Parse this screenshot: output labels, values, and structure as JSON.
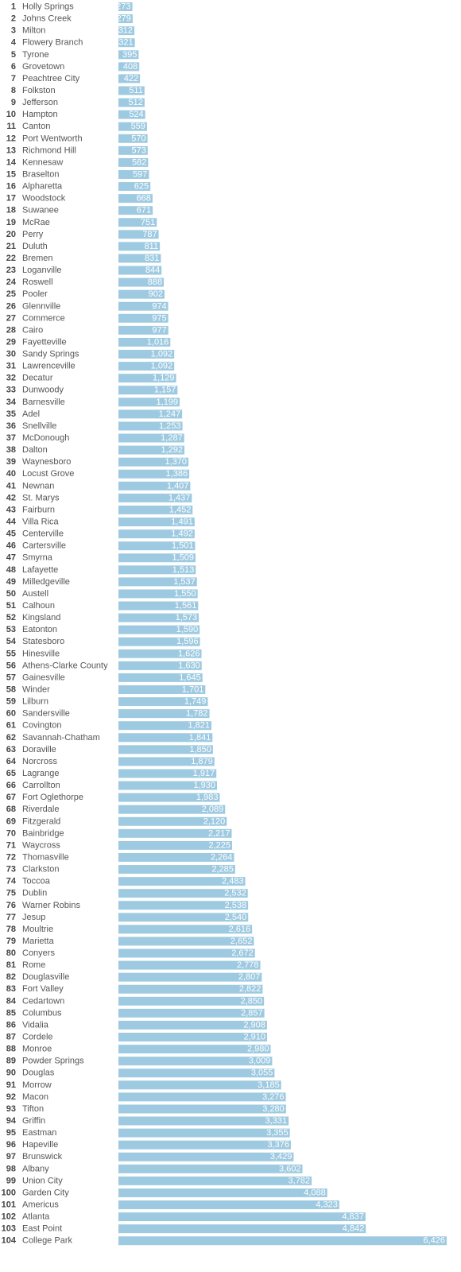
{
  "chart_data": {
    "type": "bar",
    "orientation": "horizontal",
    "bar_color": "#9ecae1",
    "value_label_color": "#ffffff",
    "ranks": [
      1,
      2,
      3,
      4,
      5,
      6,
      7,
      8,
      9,
      10,
      11,
      12,
      13,
      14,
      15,
      16,
      17,
      18,
      19,
      20,
      21,
      22,
      23,
      24,
      25,
      26,
      27,
      28,
      29,
      30,
      31,
      32,
      33,
      34,
      35,
      36,
      37,
      38,
      39,
      40,
      41,
      42,
      43,
      44,
      45,
      46,
      47,
      48,
      49,
      50,
      51,
      52,
      53,
      54,
      55,
      56,
      57,
      58,
      59,
      60,
      61,
      62,
      63,
      64,
      65,
      66,
      67,
      68,
      69,
      70,
      71,
      72,
      73,
      74,
      75,
      76,
      77,
      78,
      79,
      80,
      81,
      82,
      83,
      84,
      85,
      86,
      87,
      88,
      89,
      90,
      91,
      92,
      93,
      94,
      95,
      96,
      97,
      98,
      99,
      100,
      101,
      102,
      103,
      104
    ],
    "categories": [
      "Holly Springs",
      "Johns Creek",
      "Milton",
      "Flowery Branch",
      "Tyrone",
      "Grovetown",
      "Peachtree City",
      "Folkston",
      "Jefferson",
      "Hampton",
      "Canton",
      "Port Wentworth",
      "Richmond Hill",
      "Kennesaw",
      "Braselton",
      "Alpharetta",
      "Woodstock",
      "Suwanee",
      "McRae",
      "Perry",
      "Duluth",
      "Bremen",
      "Loganville",
      "Roswell",
      "Pooler",
      "Glennville",
      "Commerce",
      "Cairo",
      "Fayetteville",
      "Sandy Springs",
      "Lawrenceville",
      "Decatur",
      "Dunwoody",
      "Barnesville",
      "Adel",
      "Snellville",
      "McDonough",
      "Dalton",
      "Waynesboro",
      "Locust Grove",
      "Newnan",
      "St. Marys",
      "Fairburn",
      "Villa Rica",
      "Centerville",
      "Cartersville",
      "Smyrna",
      "Lafayette",
      "Milledgeville",
      "Austell",
      "Calhoun",
      "Kingsland",
      "Eatonton",
      "Statesboro",
      "Hinesville",
      "Athens-Clarke County",
      "Gainesville",
      "Winder",
      "Lilburn",
      "Sandersville",
      "Covington",
      "Savannah-Chatham",
      "Doraville",
      "Norcross",
      "Lagrange",
      "Carrollton",
      "Fort Oglethorpe",
      "Riverdale",
      "Fitzgerald",
      "Bainbridge",
      "Waycross",
      "Thomasville",
      "Clarkston",
      "Toccoa",
      "Dublin",
      "Warner Robins",
      "Jesup",
      "Moultrie",
      "Marietta",
      "Conyers",
      "Rome",
      "Douglasville",
      "Fort Valley",
      "Cedartown",
      "Columbus",
      "Vidalia",
      "Cordele",
      "Monroe",
      "Powder Springs",
      "Douglas",
      "Morrow",
      "Macon",
      "Tifton",
      "Griffin",
      "Eastman",
      "Hapeville",
      "Brunswick",
      "Albany",
      "Union City",
      "Garden City",
      "Americus",
      "Atlanta",
      "East Point",
      "College Park"
    ],
    "values": [
      273,
      279,
      312,
      321,
      395,
      408,
      422,
      511,
      512,
      524,
      559,
      570,
      573,
      582,
      597,
      625,
      668,
      671,
      751,
      787,
      811,
      831,
      844,
      888,
      902,
      974,
      975,
      977,
      1016,
      1092,
      1092,
      1129,
      1157,
      1199,
      1247,
      1253,
      1287,
      1292,
      1370,
      1386,
      1407,
      1437,
      1452,
      1491,
      1492,
      1501,
      1509,
      1513,
      1537,
      1550,
      1561,
      1573,
      1590,
      1596,
      1626,
      1630,
      1645,
      1701,
      1749,
      1782,
      1821,
      1841,
      1850,
      1879,
      1917,
      1930,
      1983,
      2089,
      2120,
      2217,
      2225,
      2264,
      2285,
      2483,
      2532,
      2538,
      2540,
      2616,
      2652,
      2672,
      2778,
      2807,
      2822,
      2850,
      2857,
      2908,
      2910,
      2980,
      3009,
      3055,
      3185,
      3276,
      3280,
      3331,
      3355,
      3376,
      3429,
      3602,
      3782,
      4088,
      4323,
      4837,
      4842,
      6426
    ],
    "value_labels": [
      "273",
      "279",
      "312",
      "321",
      "395",
      "408",
      "422",
      "511",
      "512",
      "524",
      "559",
      "570",
      "573",
      "582",
      "597",
      "625",
      "668",
      "671",
      "751",
      "787",
      "811",
      "831",
      "844",
      "888",
      "902",
      "974",
      "975",
      "977",
      "1,016",
      "1,092",
      "1,092",
      "1,129",
      "1,157",
      "1,199",
      "1,247",
      "1,253",
      "1,287",
      "1,292",
      "1,370",
      "1,386",
      "1,407",
      "1,437",
      "1,452",
      "1,491",
      "1,492",
      "1,501",
      "1,509",
      "1,513",
      "1,537",
      "1,550",
      "1,561",
      "1,573",
      "1,590",
      "1,596",
      "1,626",
      "1,630",
      "1,645",
      "1,701",
      "1,749",
      "1,782",
      "1,821",
      "1,841",
      "1,850",
      "1,879",
      "1,917",
      "1,930",
      "1,983",
      "2,089",
      "2,120",
      "2,217",
      "2,225",
      "2,264",
      "2,285",
      "2,483",
      "2,532",
      "2,538",
      "2,540",
      "2,616",
      "2,652",
      "2,672",
      "2,778",
      "2,807",
      "2,822",
      "2,850",
      "2,857",
      "2,908",
      "2,910",
      "2,980",
      "3,009",
      "3,055",
      "3,185",
      "3,276",
      "3,280",
      "3,331",
      "3,355",
      "3,376",
      "3,429",
      "3,602",
      "3,782",
      "4,088",
      "4,323",
      "4,837",
      "4,842",
      "6,426"
    ],
    "xlim": [
      0,
      6426
    ],
    "grid": false,
    "legend": "none"
  }
}
